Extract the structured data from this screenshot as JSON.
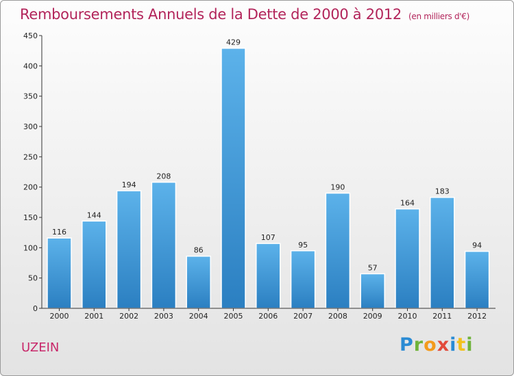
{
  "header": {
    "title": "Remboursements Annuels de la Dette de 2000 à 2012",
    "subtitle": "(en milliers d'€)"
  },
  "footer": {
    "commune": "UZEIN",
    "logo_text": "Proxiti"
  },
  "colors": {
    "title": "#b2245a",
    "bar_top": "#5cb2ea",
    "bar_bottom": "#2b7fc1"
  },
  "chart_data": {
    "type": "bar",
    "title": "Remboursements Annuels de la Dette de 2000 à 2012",
    "subtitle": "(en milliers d'€)",
    "categories": [
      "2000",
      "2001",
      "2002",
      "2003",
      "2004",
      "2005",
      "2006",
      "2007",
      "2008",
      "2009",
      "2010",
      "2011",
      "2012"
    ],
    "values": [
      116,
      144,
      194,
      208,
      86,
      429,
      107,
      95,
      190,
      57,
      164,
      183,
      94
    ],
    "ylim": [
      0,
      450
    ],
    "yticks": [
      0,
      50,
      100,
      150,
      200,
      250,
      300,
      350,
      400,
      450
    ],
    "grid": false,
    "data_labels": true
  }
}
